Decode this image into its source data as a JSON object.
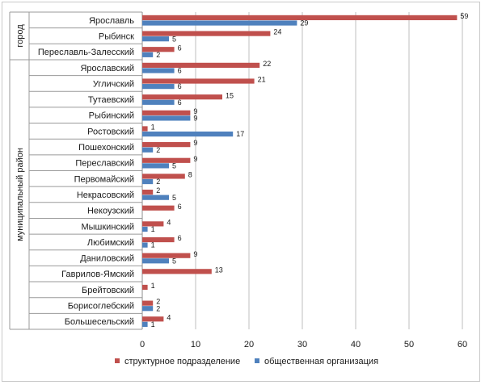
{
  "chart_data": {
    "type": "bar",
    "orientation": "horizontal",
    "categories": [
      "Ярославль",
      "Рыбинск",
      "Переславль-Залесский",
      "Ярославский",
      "Угличский",
      "Тутаевский",
      "Рыбинский",
      "Ростовский",
      "Пошехонский",
      "Переславский",
      "Первомайский",
      "Некрасовский",
      "Некоузский",
      "Мышкинский",
      "Любимский",
      "Даниловский",
      "Гаврилов-Ямский",
      "Брейтовский",
      "Борисоглебский",
      "Большесельский"
    ],
    "groups": [
      {
        "label": "город",
        "from": 0,
        "to": 2
      },
      {
        "label": "муниципальный район",
        "from": 3,
        "to": 19
      }
    ],
    "series": [
      {
        "name": "структурное подразделение",
        "color": "#c0504d",
        "values": [
          59,
          24,
          6,
          22,
          21,
          15,
          9,
          1,
          9,
          9,
          8,
          2,
          6,
          4,
          6,
          9,
          13,
          1,
          2,
          4
        ]
      },
      {
        "name": "общественная организация",
        "color": "#4f81bd",
        "values": [
          29,
          5,
          2,
          6,
          6,
          6,
          9,
          17,
          2,
          5,
          2,
          5,
          null,
          1,
          1,
          5,
          null,
          null,
          2,
          1
        ]
      }
    ],
    "xlim": [
      0,
      60
    ],
    "xticks": [
      0,
      10,
      20,
      30,
      40,
      50,
      60
    ],
    "grid": true,
    "legend_position": "bottom"
  }
}
